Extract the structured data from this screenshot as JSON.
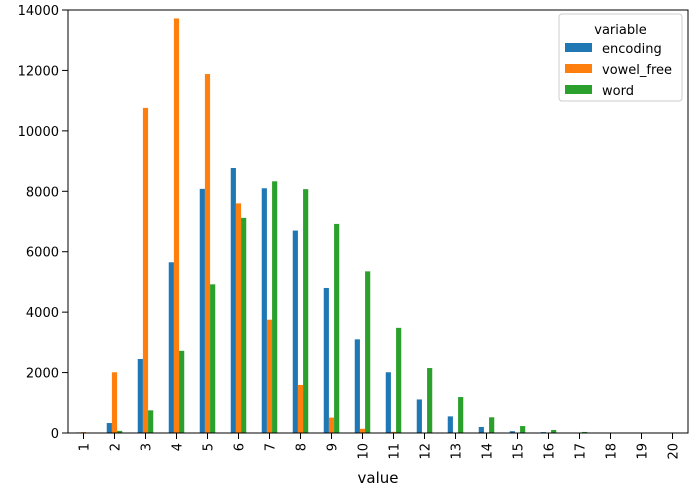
{
  "chart_data": {
    "type": "bar",
    "xlabel": "value",
    "ylabel": "",
    "ylim": [
      0,
      14000
    ],
    "yticks": [
      0,
      2000,
      4000,
      6000,
      8000,
      10000,
      12000,
      14000
    ],
    "categories": [
      "1",
      "2",
      "3",
      "4",
      "5",
      "6",
      "7",
      "8",
      "9",
      "10",
      "11",
      "12",
      "13",
      "14",
      "15",
      "16",
      "17",
      "18",
      "19",
      "20"
    ],
    "legend": {
      "title": "variable",
      "placement": "top-right"
    },
    "grid": false,
    "series": [
      {
        "name": "encoding",
        "color": "#1f77b4",
        "values": [
          20,
          330,
          2450,
          5650,
          8080,
          8770,
          8100,
          6700,
          4800,
          3100,
          2010,
          1110,
          550,
          200,
          60,
          30,
          8,
          2,
          1,
          0
        ]
      },
      {
        "name": "vowel_free",
        "color": "#ff7f0e",
        "values": [
          30,
          2010,
          10760,
          13720,
          11880,
          7600,
          3750,
          1590,
          510,
          140,
          40,
          10,
          3,
          1,
          0,
          0,
          0,
          0,
          0,
          0
        ]
      },
      {
        "name": "word",
        "color": "#2ca02c",
        "values": [
          5,
          70,
          750,
          2720,
          4920,
          7120,
          8330,
          8070,
          6920,
          5350,
          3480,
          2150,
          1190,
          520,
          230,
          100,
          35,
          12,
          4,
          2
        ]
      }
    ]
  }
}
